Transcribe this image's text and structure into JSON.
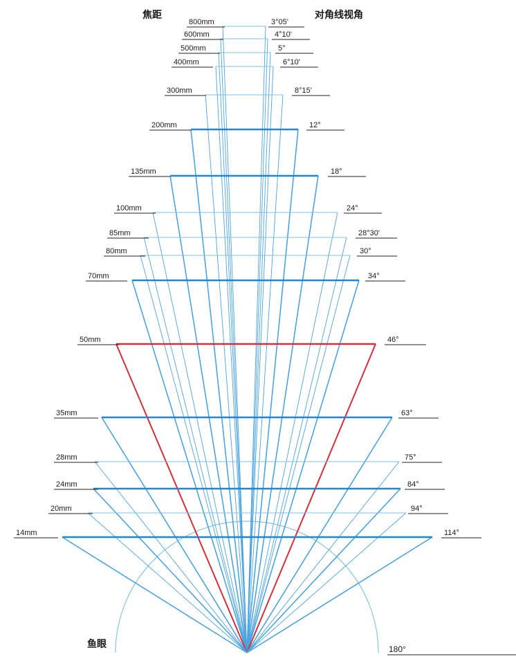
{
  "header": {
    "focal_title": "焦距",
    "angle_title": "对角线视角"
  },
  "fisheye": {
    "label": "鱼眼",
    "angle": "180°"
  },
  "colors": {
    "ray": "#4ca3dd",
    "bold_line": "#1f86d6",
    "thin_line": "#7cc0e8",
    "highlight": "#d0303a",
    "arc": "#86c5df",
    "underline": "#222222"
  },
  "lenses": [
    {
      "focal": "800mm",
      "angle": "3°05'",
      "highlight": false,
      "bold": false
    },
    {
      "focal": "600mm",
      "angle": "4°10'",
      "highlight": false,
      "bold": false
    },
    {
      "focal": "500mm",
      "angle": "5°",
      "highlight": false,
      "bold": false
    },
    {
      "focal": "400mm",
      "angle": "6°10'",
      "highlight": false,
      "bold": false
    },
    {
      "focal": "300mm",
      "angle": "8°15'",
      "highlight": false,
      "bold": false
    },
    {
      "focal": "200mm",
      "angle": "12°",
      "highlight": false,
      "bold": true
    },
    {
      "focal": "135mm",
      "angle": "18°",
      "highlight": false,
      "bold": true
    },
    {
      "focal": "100mm",
      "angle": "24°",
      "highlight": false,
      "bold": false
    },
    {
      "focal": "85mm",
      "angle": "28°30'",
      "highlight": false,
      "bold": false
    },
    {
      "focal": "80mm",
      "angle": "30°",
      "highlight": false,
      "bold": false
    },
    {
      "focal": "70mm",
      "angle": "34°",
      "highlight": false,
      "bold": true
    },
    {
      "focal": "50mm",
      "angle": "46°",
      "highlight": true,
      "bold": true
    },
    {
      "focal": "35mm",
      "angle": "63°",
      "highlight": false,
      "bold": true
    },
    {
      "focal": "28mm",
      "angle": "75°",
      "highlight": false,
      "bold": false
    },
    {
      "focal": "24mm",
      "angle": "84°",
      "highlight": false,
      "bold": true
    },
    {
      "focal": "20mm",
      "angle": "94°",
      "highlight": false,
      "bold": false
    },
    {
      "focal": "14mm",
      "angle": "114°",
      "highlight": false,
      "bold": true
    }
  ]
}
